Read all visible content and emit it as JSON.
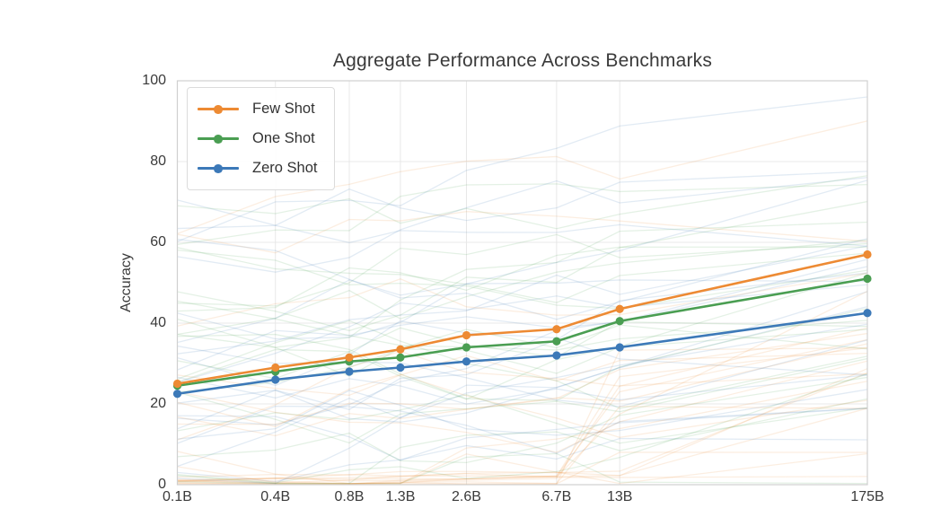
{
  "chart_data": {
    "type": "line",
    "title": "Aggregate Performance Across Benchmarks",
    "xlabel": "",
    "ylabel": "Accuracy",
    "x_scale": "log",
    "x_tick_labels": [
      "0.1B",
      "0.4B",
      "0.8B",
      "1.3B",
      "2.6B",
      "6.7B",
      "13B",
      "175B"
    ],
    "x_values_billions": [
      0.125,
      0.35,
      0.76,
      1.3,
      2.6,
      6.7,
      13,
      175
    ],
    "y_ticks": [
      0,
      20,
      40,
      60,
      80,
      100
    ],
    "ylim": [
      0,
      100
    ],
    "grid": true,
    "legend_position": "upper-left",
    "series": [
      {
        "name": "Few Shot",
        "color": "#ed8a33",
        "values": [
          25.0,
          29.0,
          31.5,
          33.5,
          37.0,
          38.5,
          43.5,
          57.0
        ]
      },
      {
        "name": "One Shot",
        "color": "#4a9e52",
        "values": [
          24.5,
          28.0,
          30.5,
          31.5,
          34.0,
          35.5,
          40.5,
          51.0
        ]
      },
      {
        "name": "Zero Shot",
        "color": "#3c79b8",
        "values": [
          22.5,
          26.0,
          28.0,
          29.0,
          30.5,
          32.0,
          34.0,
          42.5
        ]
      }
    ],
    "background_lines": {
      "description": "faint individual benchmark curves",
      "count": 66,
      "opacity": 0.15,
      "seed": 11
    }
  },
  "style_colors": {
    "grid": "#e8e8e8",
    "plot_border": "#d0d0d0",
    "text": "#3a3a3a",
    "background": "#ffffff"
  }
}
